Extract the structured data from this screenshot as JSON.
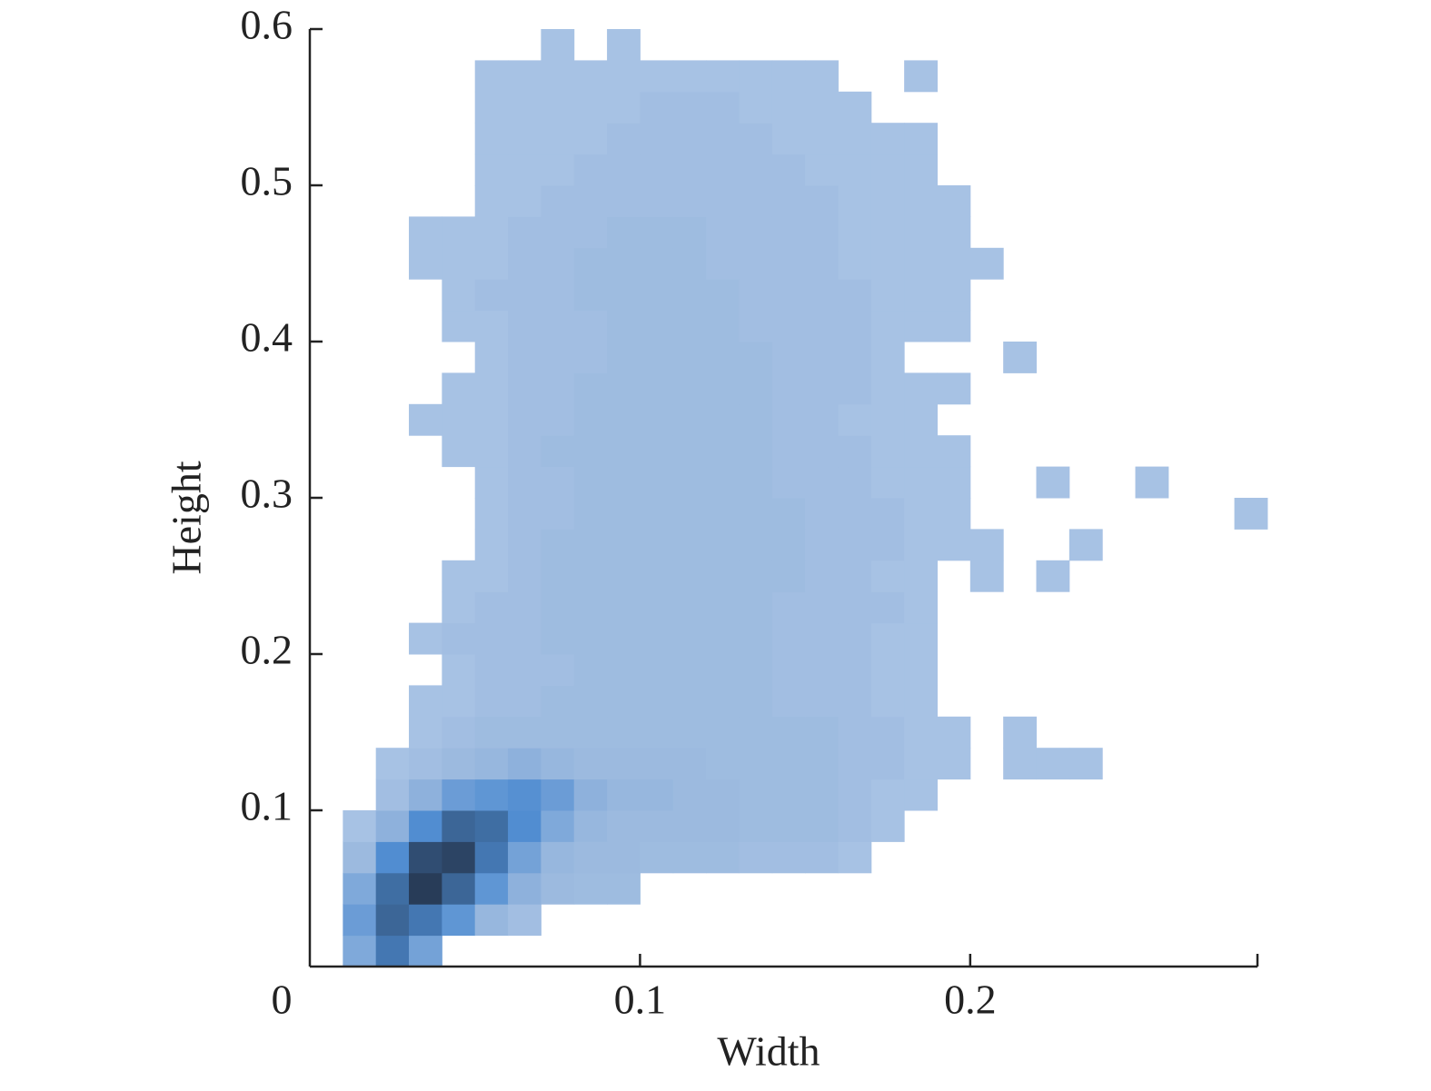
{
  "chart_data": {
    "type": "histogram2d",
    "xlabel": "Width",
    "ylabel": "Height",
    "xlim": [
      0,
      0.287
    ],
    "ylim": [
      0,
      0.6
    ],
    "xticks": [
      0,
      0.1,
      0.2
    ],
    "yticks": [
      0.1,
      0.2,
      0.3,
      0.4,
      0.5,
      0.6
    ],
    "colorscale": [
      "#a7c2e4",
      "#9bb9df",
      "#4d8bd0",
      "#283c58"
    ],
    "xbins": [
      0.01,
      0.02,
      0.03,
      0.04,
      0.05,
      0.06,
      0.07,
      0.08,
      0.09,
      0.1,
      0.11,
      0.12,
      0.13,
      0.14,
      0.15,
      0.16,
      0.17,
      0.18,
      0.19,
      0.2,
      0.21,
      0.22,
      0.23,
      0.24,
      0.25,
      0.26,
      0.27,
      0.28,
      0.29
    ],
    "ybins": [
      0,
      0.02,
      0.04,
      0.06,
      0.08,
      0.1,
      0.12,
      0.14,
      0.16,
      0.18,
      0.2,
      0.22,
      0.24,
      0.26,
      0.28,
      0.3,
      0.32,
      0.34,
      0.36,
      0.38,
      0.4,
      0.42,
      0.44,
      0.46,
      0.48,
      0.5,
      0.52,
      0.54,
      0.56,
      0.58,
      0.6
    ],
    "counts": [
      [
        8,
        30,
        10,
        0,
        0,
        0,
        0,
        0,
        0,
        0,
        0,
        0,
        0,
        0,
        0,
        0,
        0,
        0,
        0,
        0,
        0,
        0,
        0,
        0,
        0,
        0,
        0,
        0
      ],
      [
        12,
        40,
        30,
        15,
        5,
        2,
        0,
        0,
        0,
        0,
        0,
        0,
        0,
        0,
        0,
        0,
        0,
        0,
        0,
        0,
        0,
        0,
        0,
        0,
        0,
        0,
        0,
        0
      ],
      [
        8,
        35,
        80,
        40,
        15,
        6,
        4,
        3,
        3,
        0,
        0,
        0,
        0,
        0,
        0,
        0,
        0,
        0,
        0,
        0,
        0,
        0,
        0,
        0,
        0,
        0,
        0,
        0
      ],
      [
        4,
        20,
        60,
        70,
        30,
        10,
        5,
        4,
        4,
        3,
        3,
        3,
        2,
        2,
        2,
        1,
        0,
        0,
        0,
        0,
        0,
        0,
        0,
        0,
        0,
        0,
        0,
        0
      ],
      [
        1,
        6,
        20,
        40,
        35,
        20,
        8,
        5,
        4,
        4,
        4,
        4,
        3,
        3,
        3,
        2,
        1,
        0,
        0,
        0,
        0,
        0,
        0,
        0,
        0,
        0,
        0,
        0
      ],
      [
        0,
        2,
        6,
        12,
        15,
        18,
        12,
        6,
        5,
        5,
        4,
        4,
        3,
        3,
        3,
        2,
        1,
        1,
        0,
        0,
        0,
        0,
        0,
        0,
        0,
        0,
        0,
        0
      ],
      [
        0,
        1,
        2,
        4,
        5,
        6,
        5,
        4,
        4,
        4,
        4,
        3,
        3,
        3,
        3,
        2,
        2,
        1,
        1,
        0,
        1,
        1,
        1,
        0,
        0,
        0,
        0,
        0
      ],
      [
        0,
        0,
        1,
        2,
        3,
        3,
        3,
        3,
        3,
        3,
        3,
        3,
        3,
        3,
        3,
        2,
        2,
        1,
        1,
        0,
        1,
        0,
        0,
        0,
        0,
        0,
        0,
        0
      ],
      [
        0,
        0,
        1,
        1,
        2,
        2,
        3,
        3,
        3,
        3,
        3,
        3,
        3,
        2,
        2,
        2,
        1,
        1,
        0,
        0,
        0,
        0,
        0,
        0,
        0,
        0,
        0,
        0
      ],
      [
        0,
        0,
        0,
        1,
        2,
        2,
        2,
        3,
        3,
        3,
        3,
        3,
        3,
        2,
        2,
        2,
        1,
        1,
        0,
        0,
        0,
        0,
        0,
        0,
        0,
        0,
        0,
        0
      ],
      [
        0,
        0,
        1,
        2,
        2,
        2,
        3,
        3,
        3,
        3,
        3,
        3,
        3,
        2,
        2,
        2,
        1,
        1,
        0,
        0,
        0,
        0,
        0,
        0,
        0,
        0,
        0,
        0
      ],
      [
        0,
        0,
        0,
        1,
        2,
        2,
        3,
        3,
        3,
        3,
        3,
        3,
        3,
        2,
        2,
        2,
        2,
        1,
        0,
        0,
        0,
        0,
        0,
        0,
        0,
        0,
        0,
        0
      ],
      [
        0,
        0,
        0,
        1,
        1,
        2,
        3,
        3,
        3,
        3,
        3,
        3,
        3,
        3,
        2,
        2,
        1,
        1,
        0,
        1,
        0,
        1,
        0,
        0,
        0,
        0,
        0,
        0
      ],
      [
        0,
        0,
        0,
        0,
        1,
        2,
        3,
        3,
        3,
        3,
        3,
        3,
        3,
        3,
        2,
        2,
        2,
        1,
        1,
        1,
        0,
        0,
        1,
        0,
        0,
        0,
        0,
        0
      ],
      [
        0,
        0,
        0,
        0,
        1,
        2,
        2,
        3,
        3,
        3,
        3,
        3,
        3,
        3,
        2,
        2,
        2,
        1,
        1,
        0,
        0,
        0,
        0,
        0,
        0,
        0,
        0,
        1
      ],
      [
        0,
        0,
        0,
        0,
        1,
        2,
        2,
        3,
        3,
        3,
        3,
        3,
        3,
        2,
        2,
        2,
        1,
        1,
        1,
        0,
        0,
        1,
        0,
        0,
        1,
        0,
        0,
        0
      ],
      [
        0,
        0,
        0,
        1,
        1,
        2,
        3,
        3,
        3,
        3,
        3,
        3,
        3,
        2,
        2,
        2,
        1,
        1,
        1,
        0,
        0,
        0,
        0,
        0,
        0,
        0,
        0,
        0
      ],
      [
        0,
        0,
        1,
        1,
        1,
        2,
        2,
        3,
        3,
        3,
        3,
        3,
        3,
        2,
        2,
        1,
        1,
        1,
        0,
        0,
        0,
        0,
        0,
        0,
        0,
        0,
        0,
        0
      ],
      [
        0,
        0,
        0,
        1,
        1,
        2,
        2,
        3,
        3,
        3,
        3,
        3,
        3,
        2,
        2,
        2,
        1,
        1,
        1,
        0,
        0,
        0,
        0,
        0,
        0,
        0,
        0,
        0
      ],
      [
        0,
        0,
        0,
        0,
        1,
        2,
        2,
        2,
        3,
        3,
        3,
        3,
        3,
        2,
        2,
        2,
        1,
        0,
        0,
        0,
        1,
        0,
        0,
        0,
        0,
        0,
        0,
        0
      ],
      [
        0,
        0,
        0,
        1,
        1,
        2,
        2,
        2,
        3,
        3,
        3,
        3,
        2,
        2,
        2,
        2,
        1,
        1,
        1,
        0,
        0,
        0,
        0,
        0,
        0,
        0,
        0,
        0
      ],
      [
        0,
        0,
        0,
        1,
        2,
        2,
        2,
        3,
        3,
        3,
        3,
        3,
        2,
        2,
        2,
        2,
        1,
        1,
        1,
        0,
        0,
        0,
        0,
        0,
        0,
        0,
        0,
        0
      ],
      [
        0,
        0,
        1,
        1,
        1,
        2,
        2,
        3,
        3,
        3,
        3,
        2,
        2,
        2,
        2,
        1,
        1,
        1,
        1,
        1,
        0,
        0,
        0,
        0,
        0,
        0,
        0,
        0
      ],
      [
        0,
        0,
        1,
        1,
        1,
        2,
        2,
        2,
        3,
        3,
        3,
        2,
        2,
        2,
        2,
        1,
        1,
        1,
        1,
        0,
        0,
        0,
        0,
        0,
        0,
        0,
        0,
        0
      ],
      [
        0,
        0,
        0,
        0,
        1,
        1,
        2,
        2,
        2,
        2,
        2,
        2,
        2,
        2,
        2,
        1,
        1,
        1,
        1,
        0,
        0,
        0,
        0,
        0,
        0,
        0,
        0,
        0
      ],
      [
        0,
        0,
        0,
        0,
        1,
        1,
        1,
        2,
        2,
        2,
        2,
        2,
        2,
        2,
        1,
        1,
        1,
        1,
        0,
        0,
        0,
        0,
        0,
        0,
        0,
        0,
        0,
        0
      ],
      [
        0,
        0,
        0,
        0,
        1,
        1,
        1,
        1,
        2,
        2,
        2,
        2,
        2,
        1,
        1,
        1,
        1,
        1,
        0,
        0,
        0,
        0,
        0,
        0,
        0,
        0,
        0,
        0
      ],
      [
        0,
        0,
        0,
        0,
        1,
        1,
        1,
        1,
        1,
        2,
        2,
        2,
        1,
        1,
        1,
        1,
        0,
        0,
        0,
        0,
        0,
        0,
        0,
        0,
        0,
        0,
        0,
        0
      ],
      [
        0,
        0,
        0,
        0,
        1,
        1,
        1,
        1,
        1,
        1,
        1,
        1,
        1,
        1,
        1,
        0,
        0,
        1,
        0,
        0,
        0,
        0,
        0,
        0,
        0,
        0,
        0,
        0
      ],
      [
        0,
        0,
        0,
        0,
        0,
        0,
        1,
        0,
        1,
        0,
        0,
        0,
        0,
        0,
        0,
        0,
        0,
        0,
        0,
        0,
        0,
        0,
        0,
        0,
        0,
        0,
        0,
        0
      ]
    ]
  }
}
